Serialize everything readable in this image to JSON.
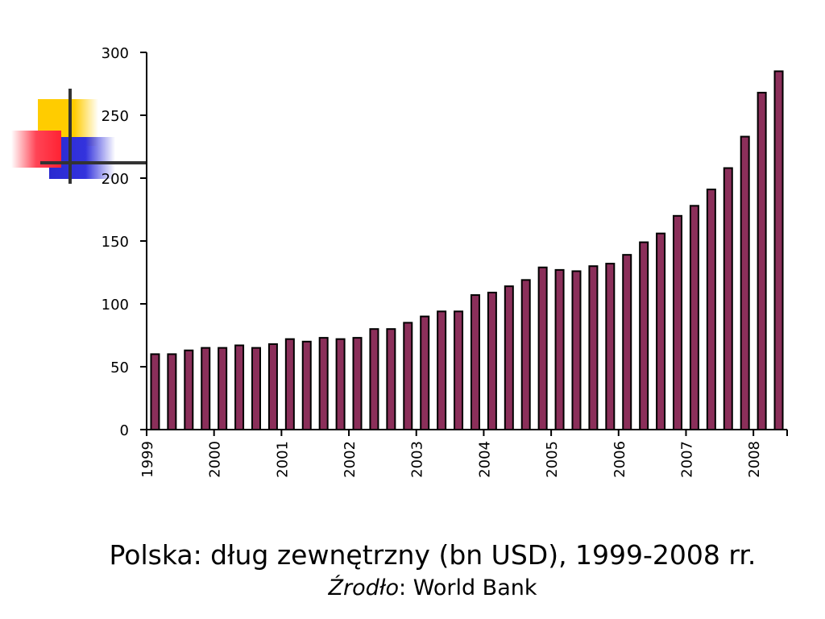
{
  "caption": {
    "title": "Polska: dług zewnętrzny (bn USD), 1999-2008 rr.",
    "source_label": "Źrodło",
    "source_separator": ": ",
    "source_value": "World Bank"
  },
  "colors": {
    "bar_fill": "#8b2f5a",
    "bar_stroke": "#000000",
    "axis": "#000000",
    "logo_yellow": "#ffcc00",
    "logo_red": "#ff3344",
    "logo_blue": "#2a2ad0",
    "logo_lines": "#333333"
  },
  "chart_data": {
    "type": "bar",
    "title": "",
    "xlabel": "",
    "ylabel": "",
    "ylim": [
      0,
      300
    ],
    "yticks": [
      "0",
      "50",
      "100",
      "150",
      "200",
      "250",
      "300"
    ],
    "year_labels": [
      "1999",
      "2000",
      "2001",
      "2002",
      "2003",
      "2004",
      "2005",
      "2006",
      "2007",
      "2008"
    ],
    "bars_per_year": 4,
    "grid": false,
    "legend": "none",
    "values": [
      60,
      60,
      63,
      65,
      65,
      67,
      65,
      68,
      72,
      70,
      73,
      72,
      73,
      80,
      80,
      85,
      90,
      94,
      94,
      107,
      109,
      114,
      119,
      129,
      127,
      126,
      130,
      132,
      139,
      149,
      156,
      170,
      178,
      191,
      208,
      233,
      268,
      285
    ]
  }
}
